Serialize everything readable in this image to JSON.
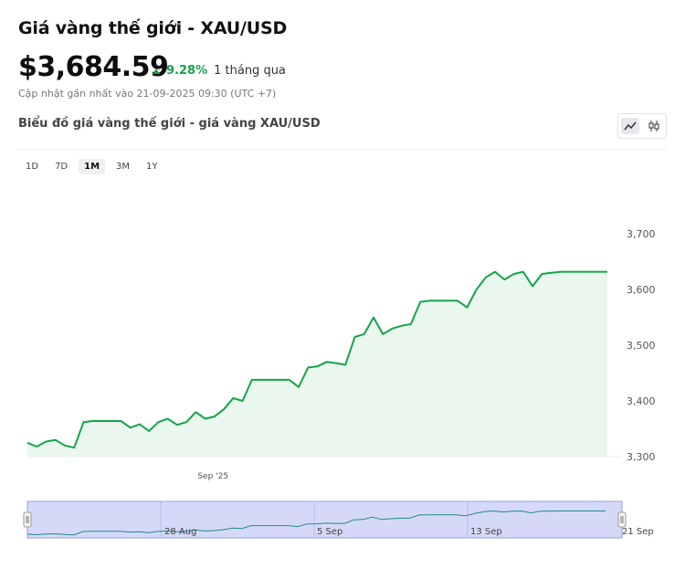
{
  "header": {
    "title": "Giá vàng thế giới - XAU/USD",
    "price": "$3,684.59",
    "change_pct": "9.28%",
    "change_period": "1 tháng qua",
    "updated": "Cập nhật gần nhất vào 21-09-2025 09:30 (UTC +7)",
    "subtitle": "Biểu đồ giá vàng thế giới - giá vàng XAU/USD"
  },
  "ranges": [
    {
      "label": "1D",
      "active": false
    },
    {
      "label": "7D",
      "active": false
    },
    {
      "label": "1M",
      "active": true
    },
    {
      "label": "3M",
      "active": false
    },
    {
      "label": "1Y",
      "active": false
    }
  ],
  "colors": {
    "line": "#16a34a",
    "area": "#eaf7ee",
    "navigator_fill": "#d5d9f7",
    "navigator_border": "#9aa0e6"
  },
  "chart_data": {
    "type": "area",
    "series_name": "XAU/USD",
    "yticks": [
      3300,
      3400,
      3500,
      3600,
      3700
    ],
    "ytick_labels": [
      "3,300",
      "3,400",
      "3,500",
      "3,600",
      "3,700"
    ],
    "ylim": [
      3300,
      3710
    ],
    "xticks": [
      {
        "label": "Sep '25",
        "x": 0.32
      }
    ],
    "x": [
      0,
      0.5,
      1,
      1.5,
      2,
      2.5,
      3,
      3.5,
      4,
      4.5,
      5,
      5.5,
      6,
      6.5,
      7,
      7.5,
      8,
      8.5,
      9,
      9.5,
      10,
      10.5,
      11,
      11.5,
      12,
      12.5,
      13,
      13.5,
      14,
      14.5,
      15,
      15.5,
      16,
      16.5,
      17,
      17.5,
      18,
      18.5,
      19,
      19.5,
      20,
      20.5,
      21,
      21.5,
      22,
      22.5,
      23,
      23.5,
      24,
      24.5,
      25,
      25.5,
      26,
      26.5,
      27,
      27.5,
      28,
      28.5,
      29,
      29.5,
      30,
      30.5,
      31
    ],
    "values": [
      3325,
      3318,
      3327,
      3330,
      3320,
      3316,
      3362,
      3364,
      3364,
      3364,
      3364,
      3352,
      3358,
      3346,
      3362,
      3368,
      3357,
      3362,
      3380,
      3368,
      3372,
      3385,
      3405,
      3400,
      3438,
      3438,
      3438,
      3438,
      3438,
      3425,
      3460,
      3462,
      3470,
      3468,
      3465,
      3515,
      3520,
      3550,
      3520,
      3530,
      3535,
      3538,
      3578,
      3580,
      3580,
      3580,
      3580,
      3568,
      3600,
      3622,
      3632,
      3618,
      3628,
      3632,
      3606,
      3628,
      3630,
      3632,
      3632,
      3632,
      3632,
      3632,
      3632
    ]
  },
  "navigator": {
    "labels": [
      "28 Aug",
      "5 Sep",
      "13 Sep",
      "21 Sep"
    ]
  }
}
